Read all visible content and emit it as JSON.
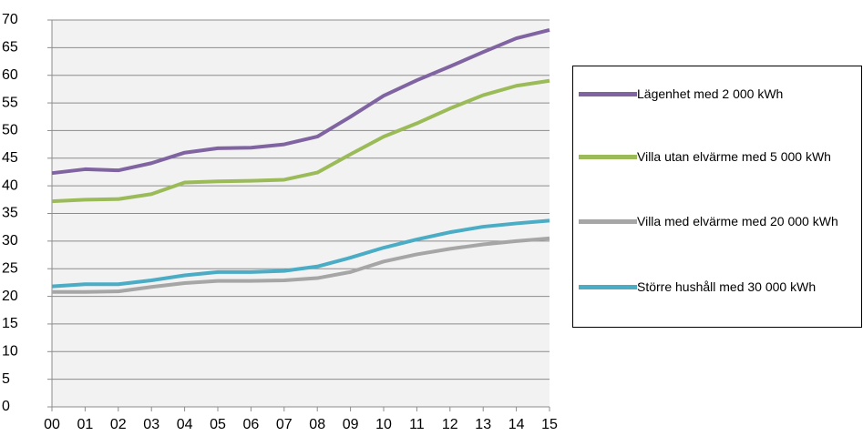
{
  "chart_data": {
    "type": "line",
    "categories": [
      "00",
      "01",
      "02",
      "03",
      "04",
      "05",
      "06",
      "07",
      "08",
      "09",
      "10",
      "11",
      "12",
      "13",
      "14",
      "15"
    ],
    "series": [
      {
        "name": "Lägenhet med 2 000 kWh",
        "color": "#8064a2",
        "values": [
          42.3,
          43,
          42.8,
          44.1,
          46,
          46.8,
          46.9,
          47.5,
          48.9,
          52.5,
          56.3,
          59.1,
          61.6,
          64.2,
          66.7,
          68.2
        ]
      },
      {
        "name": "Villa utan elvärme med 5 000 kWh",
        "color": "#9bbb59",
        "values": [
          37.2,
          37.5,
          37.6,
          38.5,
          40.6,
          40.8,
          40.9,
          41.1,
          42.4,
          45.7,
          48.9,
          51.3,
          54,
          56.4,
          58.1,
          59
        ]
      },
      {
        "name": "Villa med elvärme med 20 000 kWh",
        "color": "#a6a6a6",
        "values": [
          20.8,
          20.8,
          20.9,
          21.7,
          22.4,
          22.8,
          22.8,
          22.9,
          23.3,
          24.4,
          26.3,
          27.6,
          28.6,
          29.4,
          30,
          30.5
        ]
      },
      {
        "name": "Större hushåll med 30 000 kWh",
        "color": "#4bacc6",
        "values": [
          21.8,
          22.2,
          22.2,
          22.9,
          23.8,
          24.4,
          24.4,
          24.6,
          25.4,
          27,
          28.8,
          30.3,
          31.6,
          32.6,
          33.2,
          33.7
        ]
      }
    ],
    "ylim": [
      0,
      70
    ],
    "yticks": [
      0,
      5,
      10,
      15,
      20,
      25,
      30,
      35,
      40,
      45,
      50,
      55,
      60,
      65,
      70
    ],
    "grid": true,
    "legend": "right"
  }
}
